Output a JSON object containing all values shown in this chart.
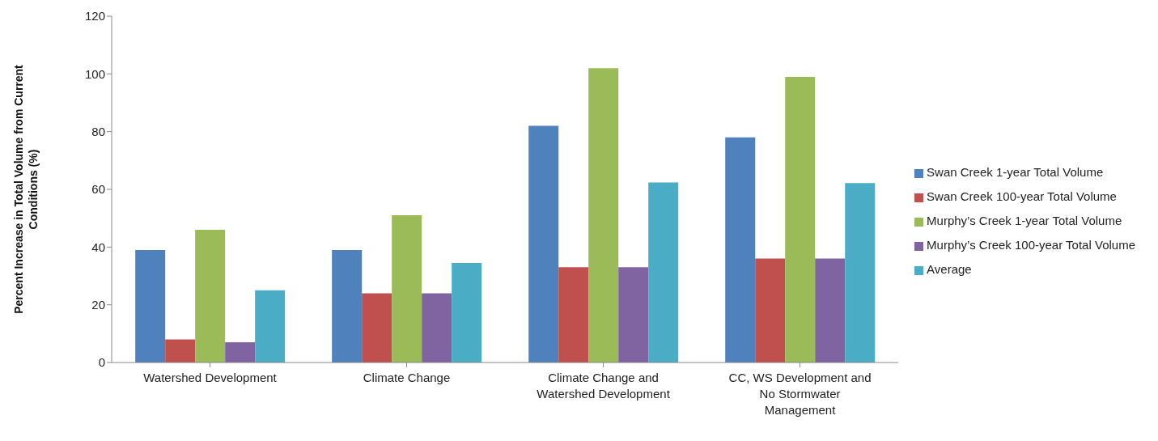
{
  "chart_data": {
    "type": "bar",
    "ylabel": "Percent Increase in Total Volume from Current Conditions (%)",
    "categories": [
      "Watershed Development",
      "Climate Change",
      "Climate Change and Watershed Development",
      "CC, WS Development and No Stormwater Management"
    ],
    "series": [
      {
        "name": "Swan Creek 1-year Total Volume",
        "color": "#4f81bd",
        "values": [
          39,
          39,
          82,
          78
        ]
      },
      {
        "name": "Swan Creek 100-year Total Volume",
        "color": "#c0504d",
        "values": [
          8,
          24,
          33,
          36
        ]
      },
      {
        "name": "Murphy’s Creek 1-year Total Volume",
        "color": "#9bbb59",
        "values": [
          46,
          51,
          102,
          99
        ]
      },
      {
        "name": "Murphy’s Creek 100-year Total Volume",
        "color": "#8064a2",
        "values": [
          7,
          24,
          33,
          36
        ]
      },
      {
        "name": "Average",
        "color": "#4bacc6",
        "values": [
          25,
          34.5,
          62.4,
          62.2
        ]
      }
    ],
    "ylim": [
      0,
      120
    ],
    "yticks": [
      0,
      20,
      40,
      60,
      80,
      100,
      120
    ],
    "grid": false,
    "legend": "right"
  }
}
